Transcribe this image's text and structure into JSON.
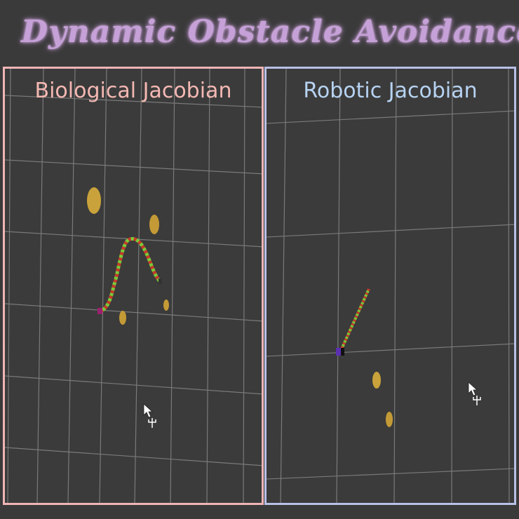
{
  "title": "Dynamic Obstacle Avoidance",
  "panels": {
    "left": {
      "title": "Biological Jacobian"
    },
    "right": {
      "title": "Robotic Jacobian"
    }
  },
  "colors": {
    "title_glow": "#c6a1d8",
    "left_border": "#f0b5b5",
    "right_border": "#b8c0e6",
    "obstacle": "#c9a23b",
    "chain_red": "#c83a2a",
    "chain_green": "#7acb3a",
    "grid": "#8a8a8a"
  },
  "icons": [
    "cursor-icon",
    "gizmo-icon"
  ]
}
